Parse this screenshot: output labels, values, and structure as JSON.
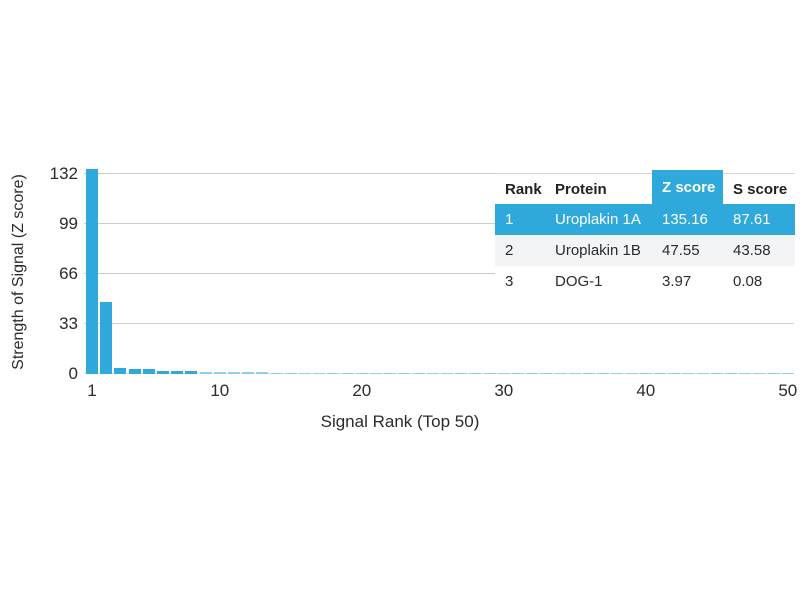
{
  "chart": {
    "ylabel": "Strength of Signal (Z score)",
    "xlabel": "Signal Rank (Top 50)",
    "yticks": [
      0,
      33,
      66,
      99,
      132
    ],
    "xticks": [
      1,
      10,
      20,
      30,
      40,
      50
    ]
  },
  "chart_data": {
    "type": "bar",
    "title": "",
    "xlabel": "Signal Rank (Top 50)",
    "ylabel": "Strength of Signal (Z score)",
    "x": [
      1,
      2,
      3,
      4,
      5,
      6,
      7,
      8,
      9,
      10,
      11,
      12,
      13,
      14,
      15,
      16,
      17,
      18,
      19,
      20,
      21,
      22,
      23,
      24,
      25,
      26,
      27,
      28,
      29,
      30,
      31,
      32,
      33,
      34,
      35,
      36,
      37,
      38,
      39,
      40,
      41,
      42,
      43,
      44,
      45,
      46,
      47,
      48,
      49,
      50
    ],
    "values": [
      135.16,
      47.55,
      3.97,
      3.6,
      3.1,
      2.1,
      1.9,
      1.8,
      1.2,
      1.2,
      1.1,
      1.1,
      1.1,
      1.0,
      1.0,
      1.0,
      1.0,
      1.0,
      1.0,
      1.0,
      0.9,
      0.9,
      0.9,
      0.9,
      0.9,
      0.9,
      0.9,
      0.9,
      0.9,
      0.9,
      0.8,
      0.8,
      0.8,
      0.8,
      0.8,
      0.8,
      0.8,
      0.8,
      0.8,
      0.8,
      0.8,
      0.8,
      0.8,
      0.8,
      0.8,
      0.8,
      0.8,
      0.8,
      0.8,
      0.8
    ],
    "ylim": [
      0,
      140
    ],
    "xlim": [
      1,
      50
    ],
    "grid": true,
    "legend": "none"
  },
  "table": {
    "headers": [
      "Rank",
      "Protein",
      "Z score",
      "S score"
    ],
    "rows": [
      {
        "rank": "1",
        "protein": "Uroplakin 1A",
        "z_score": "135.16",
        "s_score": "87.61",
        "highlighted": true
      },
      {
        "rank": "2",
        "protein": "Uroplakin 1B",
        "z_score": "47.55",
        "s_score": "43.58",
        "highlighted": false
      },
      {
        "rank": "3",
        "protein": "DOG-1",
        "z_score": "3.97",
        "s_score": "0.08",
        "highlighted": false
      }
    ]
  },
  "colors": {
    "bar": "#2FA8DC",
    "bar_light": "#8ECFEB",
    "highlight": "#2FA8DC",
    "grid": "#cccccc",
    "row_alt": "#f3f4f5",
    "text": "#2b2b2b"
  }
}
